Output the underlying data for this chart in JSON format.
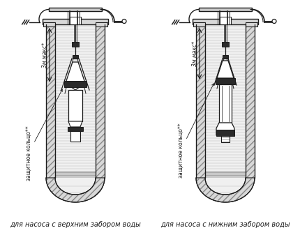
{
  "title_left": "для насоса с верхним забором воды",
  "title_right": "для насоса с нижним забором воды",
  "label_3m_left": "3м макс*",
  "label_3m_right": "3м макс*",
  "label_ring": "защитное кольцо**",
  "bg_color": "#ffffff",
  "line_color": "#1a1a1a",
  "wall_fill": "#d8d8d8",
  "water_fill": "#f0f0f0",
  "dark_fill": "#2a2a2a",
  "font_size_caption": 7.0,
  "font_size_label": 5.5
}
